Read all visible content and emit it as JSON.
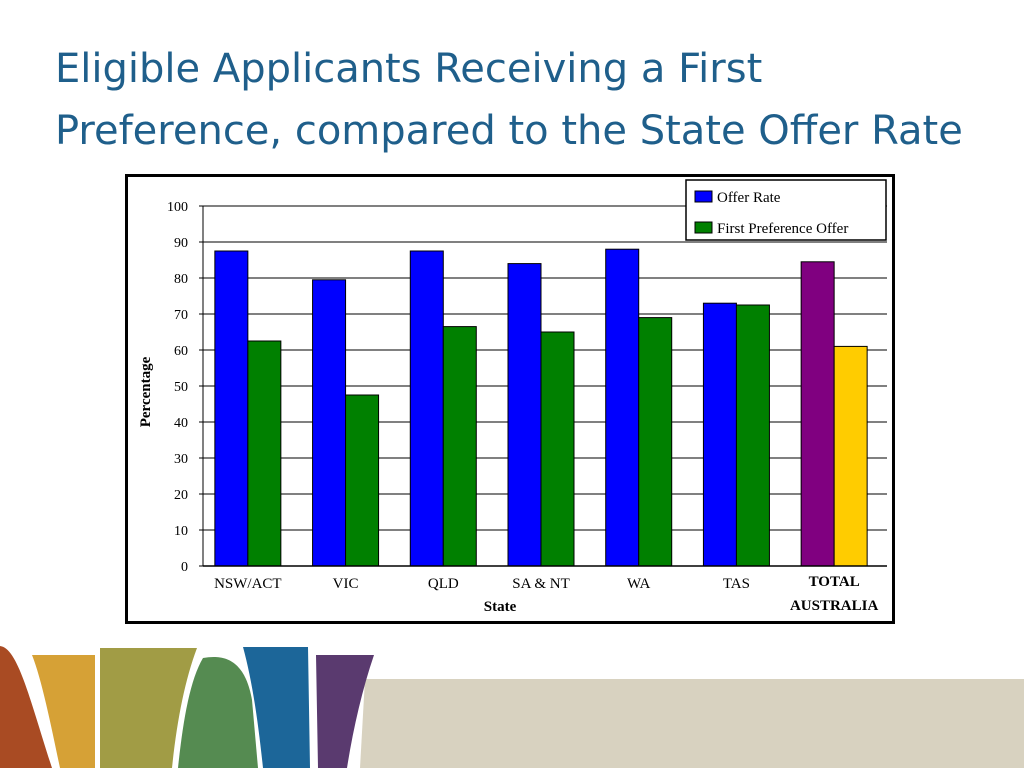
{
  "slide": {
    "title_line1": "Eligible Applicants Receiving a First",
    "title_line2": "Preference, compared to the State Offer Rate",
    "title_color": "#1f5f8b"
  },
  "chart_data": {
    "type": "bar",
    "title": "",
    "xlabel": "State",
    "ylabel": "Percentage",
    "categories": [
      "NSW/ACT",
      "VIC",
      "QLD",
      "SA & NT",
      "WA",
      "TAS",
      "TOTAL AUSTRALIA"
    ],
    "series": [
      {
        "name": "Offer Rate",
        "values": [
          87.5,
          79.5,
          87.5,
          84,
          88,
          73,
          84.5
        ],
        "color": "#0000ff",
        "highlight_color": "#800080"
      },
      {
        "name": "First Preference Offer",
        "values": [
          62.5,
          47.5,
          66.5,
          65,
          69,
          72.5,
          61
        ],
        "color": "#008000",
        "highlight_color": "#ffcc00"
      }
    ],
    "highlight_category": "TOTAL AUSTRALIA",
    "ylim": [
      0,
      100
    ],
    "yticks": [
      0,
      10,
      20,
      30,
      40,
      50,
      60,
      70,
      80,
      90,
      100
    ],
    "grid": true,
    "legend_position": "top-right"
  },
  "footer_colors": [
    "#a94b23",
    "#d6a136",
    "#a19c45",
    "#558b51",
    "#1c6699",
    "#5a3a6f",
    "#d8d2c0"
  ]
}
